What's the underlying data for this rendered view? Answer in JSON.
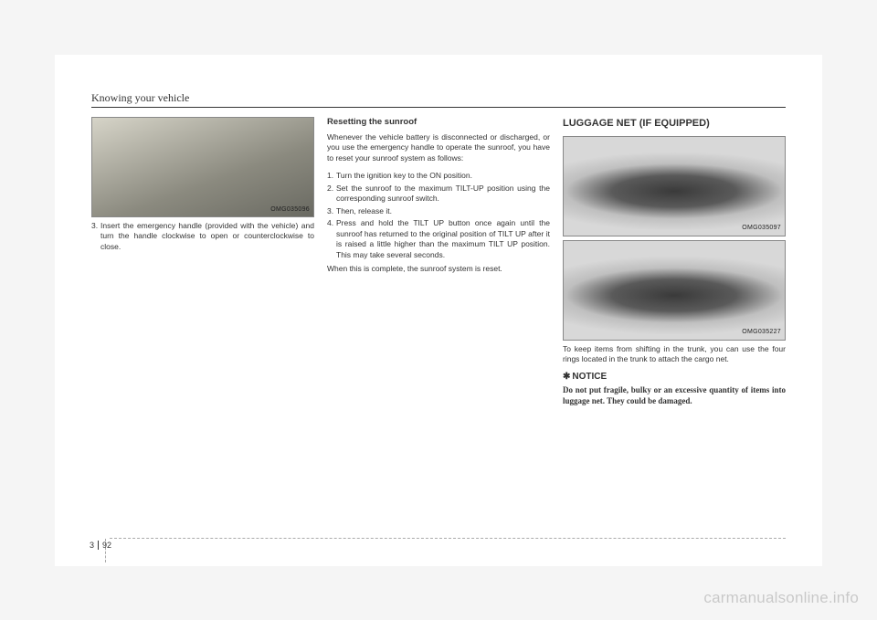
{
  "running_head": "Knowing your vehicle",
  "page_chapter": "3",
  "page_number": "92",
  "watermark": "carmanualsonline.info",
  "col1": {
    "img_code": "OMG035096",
    "step3_num": "3.",
    "step3_text": "Insert the emergency handle (provided with the vehicle) and turn the handle clockwise to open or counterclockwise to close."
  },
  "col2": {
    "heading": "Resetting the sunroof",
    "intro": "Whenever the vehicle battery is disconnected or discharged, or you use the emergency handle to operate the sunroof, you have to reset your sunroof system as follows:",
    "steps": [
      {
        "n": "1.",
        "t": "Turn the ignition key to the ON position."
      },
      {
        "n": "2.",
        "t": "Set the sunroof to the maximum TILT-UP position using the corresponding sunroof switch."
      },
      {
        "n": "3.",
        "t": "Then, release it."
      },
      {
        "n": "4.",
        "t": "Press and hold the TILT UP button once again until the sunroof has returned to the original position of TILT UP after it is raised a little higher than the maximum TILT UP position. This may take several seconds."
      }
    ],
    "outro": "When this is complete, the sunroof system is reset."
  },
  "col3": {
    "title": "LUGGAGE NET (IF EQUIPPED)",
    "img1_code": "OMG035097",
    "img2_code": "OMG035227",
    "body": "To keep items from shifting in the trunk, you can use the four rings located in the trunk to attach the cargo net.",
    "notice_symbol": "✱",
    "notice_label": "NOTICE",
    "notice_body": "Do not put fragile, bulky or an excessive quantity of items into luggage net. They could be damaged."
  }
}
